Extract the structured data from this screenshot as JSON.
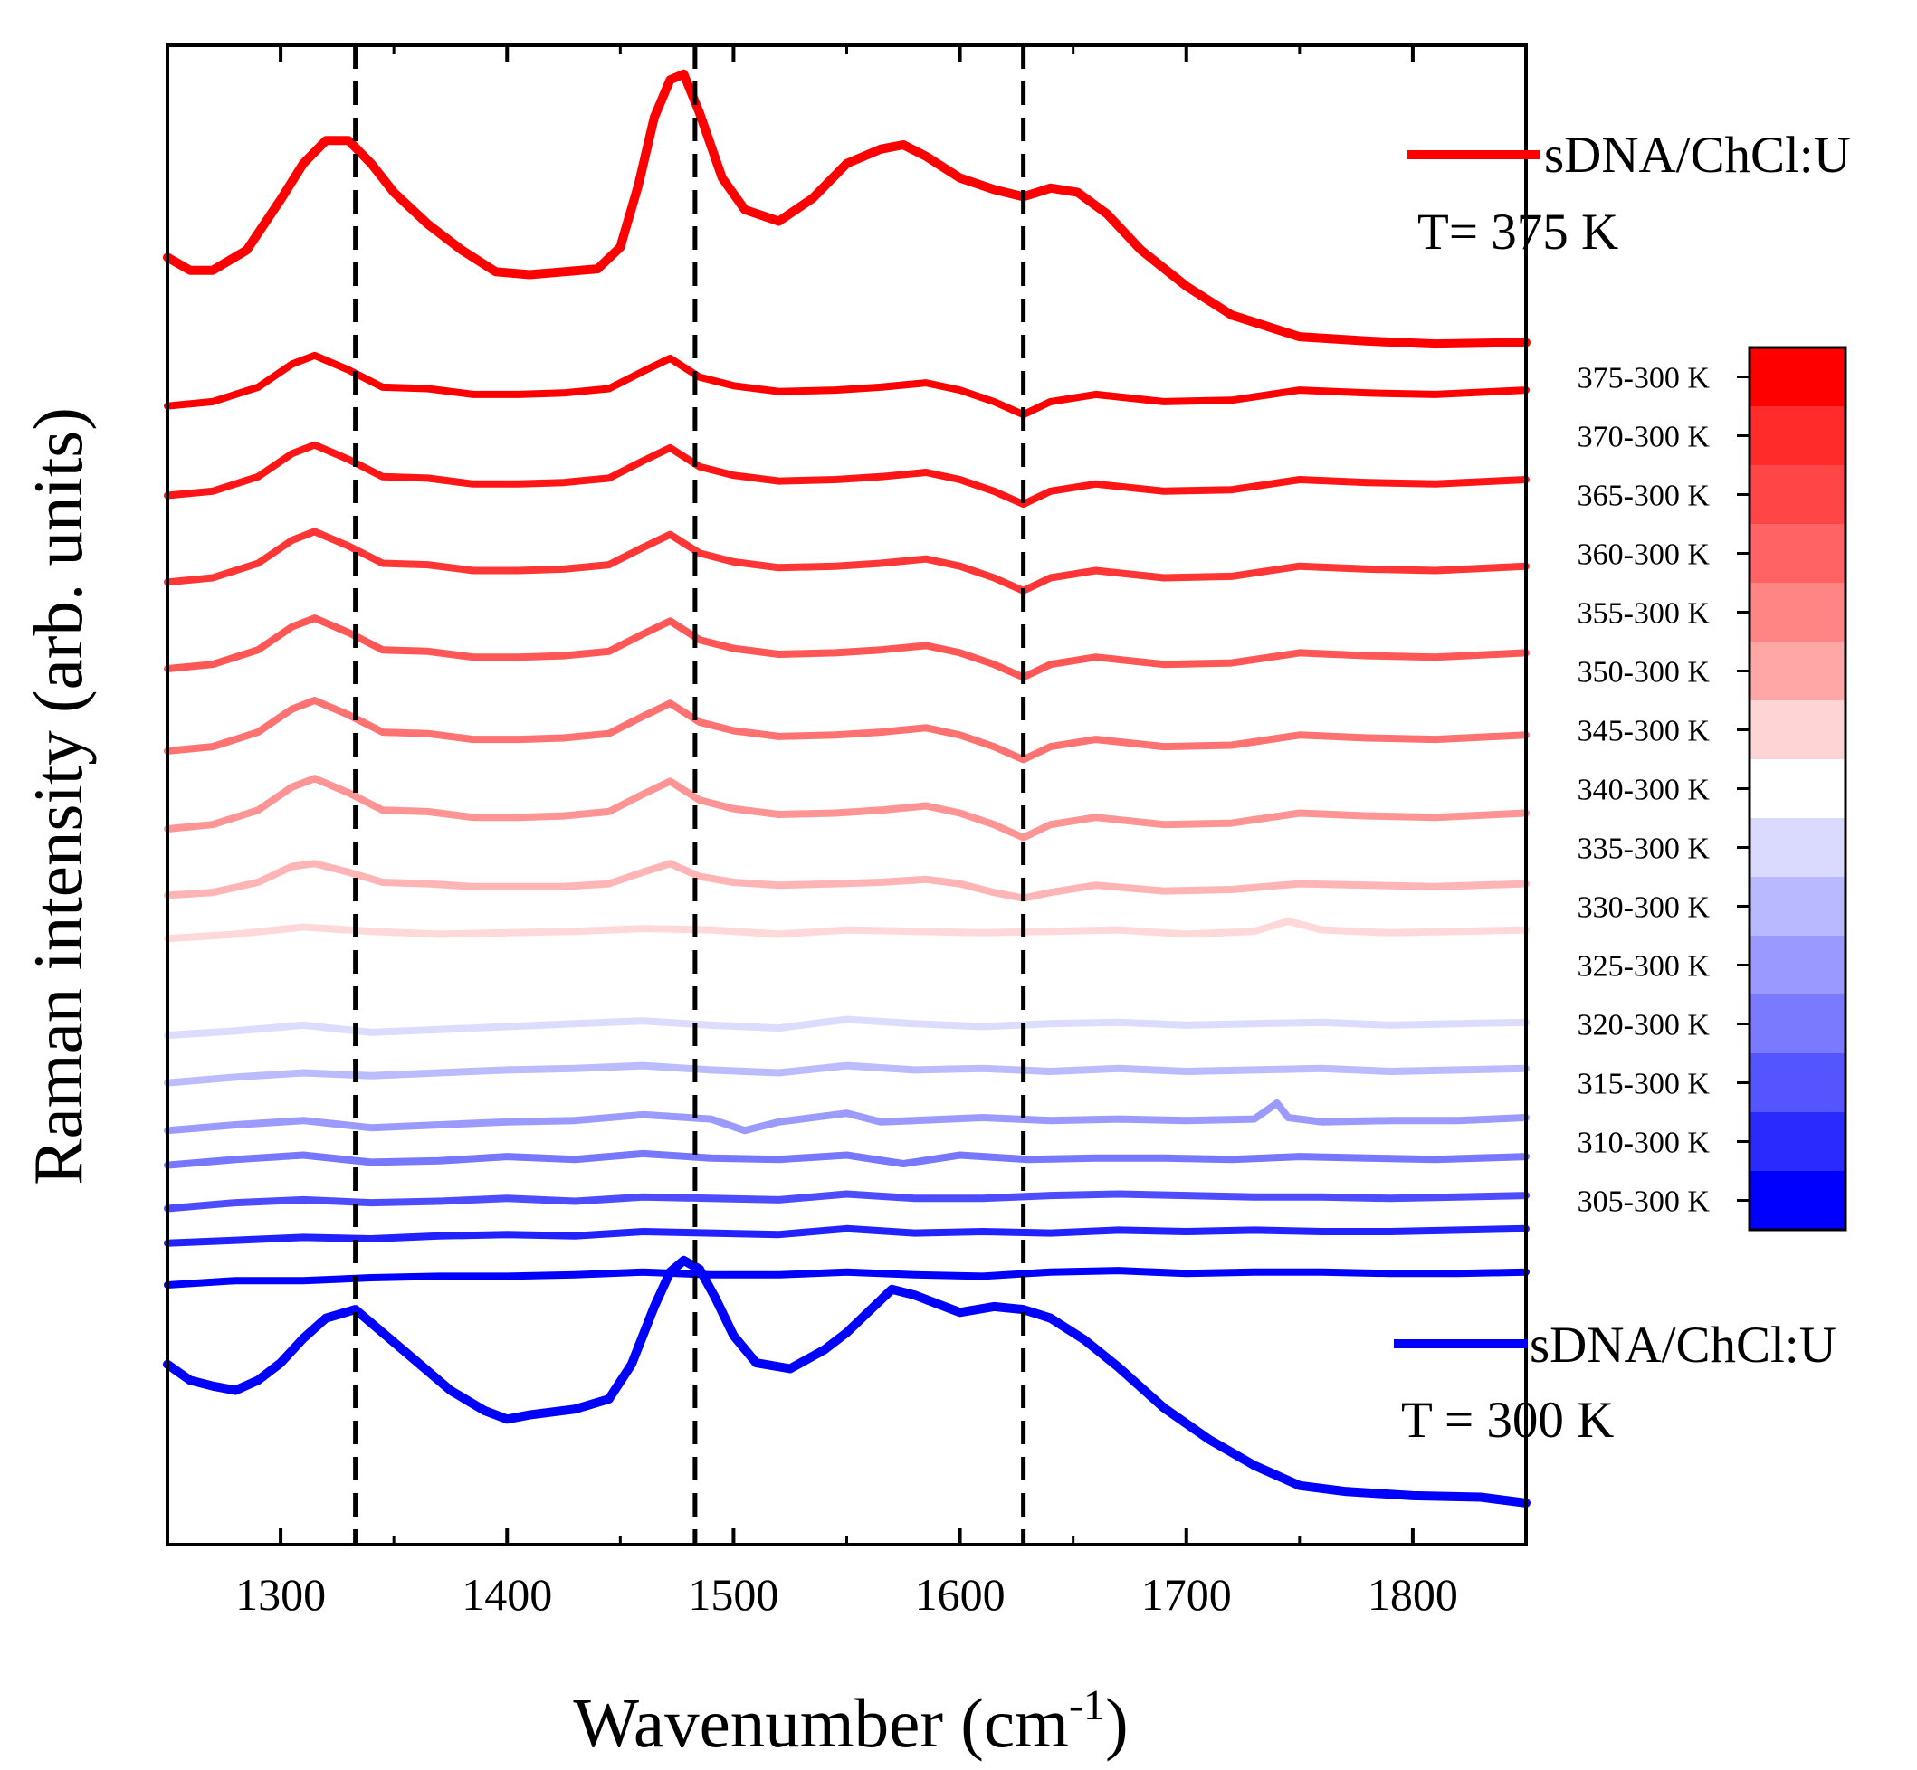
{
  "chart_data": {
    "type": "line",
    "title": "",
    "xlabel": "Wavenumber (cm",
    "xlabel_sup": "-1",
    "xlabel_end": ")",
    "ylabel": "Raman intensity (arb. units)",
    "xlim": [
      1250,
      1850
    ],
    "xticks": [
      1300,
      1400,
      1500,
      1600,
      1700,
      1800
    ],
    "ylim": [
      0,
      100
    ],
    "grid": false,
    "dashed_reference_lines": [
      1333,
      1483,
      1628
    ],
    "legend": [
      {
        "label": "sDNA/ChCl:U",
        "temperature": "T= 375 K",
        "color": "#ff0000"
      },
      {
        "label": "sDNA/ChCl:U",
        "temperature": "T = 300 K",
        "color": "#0000ff"
      }
    ],
    "colorbar": {
      "labels": [
        "375-300 K",
        "370-300 K",
        "365-300 K",
        "360-300 K",
        "355-300 K",
        "350-300 K",
        "345-300 K",
        "340-300 K",
        "335-300 K",
        "330-300 K",
        "325-300 K",
        "320-300 K",
        "315-300 K",
        "310-300 K",
        "305-300 K"
      ],
      "colors": [
        "#ff0000",
        "#ff2a2a",
        "#ff4545",
        "#ff6363",
        "#ff8484",
        "#ffa6a6",
        "#ffd4d4",
        "#ffffff",
        "#dadaff",
        "#b9b9ff",
        "#9999ff",
        "#7a7aff",
        "#5555ff",
        "#2a2aff",
        "#0000ff"
      ]
    },
    "series": [
      {
        "name": "sDNA/ChCl:U T= 375 K",
        "color": "#ff0000",
        "x": [
          1250,
          1260,
          1270,
          1285,
          1300,
          1310,
          1320,
          1330,
          1340,
          1350,
          1365,
          1380,
          1395,
          1410,
          1425,
          1440,
          1450,
          1458,
          1465,
          1472,
          1478,
          1485,
          1495,
          1505,
          1520,
          1535,
          1550,
          1565,
          1575,
          1585,
          1600,
          1615,
          1628,
          1640,
          1652,
          1665,
          1680,
          1700,
          1720,
          1750,
          1780,
          1810,
          1850
        ],
        "y": [
          87.5,
          86.6,
          86.6,
          88.0,
          91.5,
          94.0,
          95.6,
          95.6,
          94.0,
          92.0,
          89.8,
          88.0,
          86.5,
          86.3,
          86.5,
          86.7,
          88.2,
          92.5,
          97.2,
          99.8,
          100.2,
          97.5,
          93.0,
          90.8,
          90.0,
          91.6,
          94.0,
          95.0,
          95.3,
          94.5,
          93.0,
          92.2,
          91.7,
          92.3,
          92.0,
          90.5,
          88.0,
          85.5,
          83.5,
          82.0,
          81.7,
          81.5,
          81.6
        ]
      },
      {
        "name": "375-300 K",
        "color": "#ff0000",
        "x": [
          1250,
          1270,
          1290,
          1305,
          1315,
          1330,
          1345,
          1365,
          1385,
          1405,
          1425,
          1445,
          1460,
          1472,
          1485,
          1500,
          1520,
          1545,
          1565,
          1585,
          1600,
          1615,
          1628,
          1640,
          1660,
          1690,
          1720,
          1750,
          1780,
          1810,
          1850
        ],
        "y": [
          77.2,
          77.5,
          78.5,
          80.1,
          80.7,
          79.7,
          78.5,
          78.4,
          78.0,
          78.0,
          78.1,
          78.4,
          79.6,
          80.5,
          79.2,
          78.6,
          78.2,
          78.3,
          78.5,
          78.8,
          78.3,
          77.5,
          76.6,
          77.5,
          78.0,
          77.5,
          77.6,
          78.3,
          78.1,
          78.0,
          78.3
        ]
      },
      {
        "name": "370-300 K",
        "color": "#ff1515",
        "x": [
          1250,
          1270,
          1290,
          1305,
          1315,
          1330,
          1345,
          1365,
          1385,
          1405,
          1425,
          1445,
          1460,
          1472,
          1485,
          1500,
          1520,
          1545,
          1565,
          1585,
          1600,
          1615,
          1628,
          1640,
          1660,
          1690,
          1720,
          1750,
          1780,
          1810,
          1850
        ],
        "y": [
          71.0,
          71.3,
          72.3,
          73.9,
          74.5,
          73.5,
          72.3,
          72.2,
          71.8,
          71.8,
          71.9,
          72.2,
          73.4,
          74.3,
          73.0,
          72.4,
          72.0,
          72.1,
          72.3,
          72.6,
          72.1,
          71.3,
          70.4,
          71.3,
          71.8,
          71.3,
          71.4,
          72.1,
          71.9,
          71.8,
          72.1
        ]
      },
      {
        "name": "365-300 K",
        "color": "#ff3636",
        "x": [
          1250,
          1270,
          1290,
          1305,
          1315,
          1330,
          1345,
          1365,
          1385,
          1405,
          1425,
          1445,
          1460,
          1472,
          1485,
          1500,
          1520,
          1545,
          1565,
          1585,
          1600,
          1615,
          1628,
          1640,
          1660,
          1690,
          1720,
          1750,
          1780,
          1810,
          1850
        ],
        "y": [
          65.0,
          65.3,
          66.3,
          67.9,
          68.5,
          67.5,
          66.3,
          66.2,
          65.8,
          65.8,
          65.9,
          66.2,
          67.4,
          68.3,
          67.0,
          66.4,
          66.0,
          66.1,
          66.3,
          66.6,
          66.1,
          65.3,
          64.4,
          65.3,
          65.8,
          65.3,
          65.4,
          66.1,
          65.9,
          65.8,
          66.1
        ]
      },
      {
        "name": "360-300 K",
        "color": "#ff5656",
        "x": [
          1250,
          1270,
          1290,
          1305,
          1315,
          1330,
          1345,
          1365,
          1385,
          1405,
          1425,
          1445,
          1460,
          1472,
          1485,
          1500,
          1520,
          1545,
          1565,
          1585,
          1600,
          1615,
          1628,
          1640,
          1660,
          1690,
          1720,
          1750,
          1780,
          1810,
          1850
        ],
        "y": [
          59.0,
          59.3,
          60.3,
          61.9,
          62.5,
          61.5,
          60.3,
          60.2,
          59.8,
          59.8,
          59.9,
          60.2,
          61.4,
          62.3,
          61.0,
          60.4,
          60.0,
          60.1,
          60.3,
          60.6,
          60.1,
          59.3,
          58.4,
          59.3,
          59.8,
          59.3,
          59.4,
          60.1,
          59.9,
          59.8,
          60.1
        ]
      },
      {
        "name": "355-300 K",
        "color": "#ff7272",
        "x": [
          1250,
          1270,
          1290,
          1305,
          1315,
          1330,
          1345,
          1365,
          1385,
          1405,
          1425,
          1445,
          1460,
          1472,
          1485,
          1500,
          1520,
          1545,
          1565,
          1585,
          1600,
          1615,
          1628,
          1640,
          1660,
          1690,
          1720,
          1750,
          1780,
          1810,
          1850
        ],
        "y": [
          53.3,
          53.6,
          54.6,
          56.2,
          56.8,
          55.8,
          54.6,
          54.5,
          54.1,
          54.1,
          54.2,
          54.5,
          55.7,
          56.6,
          55.3,
          54.7,
          54.3,
          54.4,
          54.6,
          54.9,
          54.4,
          53.6,
          52.7,
          53.6,
          54.1,
          53.6,
          53.7,
          54.4,
          54.2,
          54.1,
          54.4
        ]
      },
      {
        "name": "350-300 K",
        "color": "#ff9494",
        "x": [
          1250,
          1270,
          1290,
          1305,
          1315,
          1330,
          1345,
          1365,
          1385,
          1405,
          1425,
          1445,
          1460,
          1472,
          1485,
          1500,
          1520,
          1545,
          1565,
          1585,
          1600,
          1615,
          1628,
          1640,
          1660,
          1690,
          1720,
          1750,
          1780,
          1810,
          1850
        ],
        "y": [
          47.9,
          48.2,
          49.2,
          50.8,
          51.4,
          50.4,
          49.2,
          49.1,
          48.7,
          48.7,
          48.8,
          49.1,
          50.3,
          51.2,
          49.9,
          49.3,
          48.9,
          49.0,
          49.2,
          49.5,
          49.0,
          48.2,
          47.3,
          48.2,
          48.7,
          48.2,
          48.3,
          49.0,
          48.8,
          48.7,
          49.0
        ]
      },
      {
        "name": "345-300 K",
        "color": "#ffb5b5",
        "x": [
          1250,
          1270,
          1290,
          1305,
          1315,
          1330,
          1345,
          1365,
          1385,
          1405,
          1425,
          1445,
          1460,
          1472,
          1485,
          1500,
          1520,
          1545,
          1565,
          1585,
          1600,
          1615,
          1628,
          1640,
          1660,
          1690,
          1720,
          1750,
          1780,
          1810,
          1850
        ],
        "y": [
          43.3,
          43.5,
          44.2,
          45.3,
          45.5,
          44.9,
          44.2,
          44.1,
          43.9,
          43.9,
          43.9,
          44.1,
          44.9,
          45.5,
          44.6,
          44.2,
          44.0,
          44.1,
          44.2,
          44.4,
          44.1,
          43.5,
          43.1,
          43.5,
          44.0,
          43.6,
          43.7,
          44.1,
          44.0,
          43.9,
          44.1
        ]
      },
      {
        "name": "340-300 K",
        "color": "#ffd9d9",
        "x": [
          1250,
          1280,
          1310,
          1340,
          1370,
          1400,
          1430,
          1460,
          1490,
          1520,
          1550,
          1580,
          1610,
          1640,
          1670,
          1700,
          1730,
          1745,
          1760,
          1790,
          1820,
          1850
        ],
        "y": [
          40.3,
          40.6,
          41.1,
          40.8,
          40.6,
          40.7,
          40.8,
          41.0,
          40.9,
          40.6,
          40.9,
          40.8,
          40.7,
          40.8,
          40.9,
          40.6,
          40.8,
          41.5,
          40.9,
          40.7,
          40.8,
          40.9
        ]
      },
      {
        "name": "335-300 K",
        "color": "#dcdcff",
        "x": [
          1250,
          1280,
          1310,
          1340,
          1370,
          1400,
          1430,
          1460,
          1490,
          1520,
          1550,
          1580,
          1610,
          1640,
          1670,
          1700,
          1730,
          1760,
          1790,
          1820,
          1850
        ],
        "y": [
          33.6,
          33.9,
          34.3,
          33.8,
          34.0,
          34.2,
          34.4,
          34.6,
          34.3,
          34.1,
          34.7,
          34.4,
          34.2,
          34.4,
          34.5,
          34.3,
          34.4,
          34.5,
          34.3,
          34.4,
          34.5
        ]
      },
      {
        "name": "330-300 K",
        "color": "#bbbbff",
        "x": [
          1250,
          1280,
          1310,
          1340,
          1370,
          1400,
          1430,
          1460,
          1490,
          1520,
          1550,
          1580,
          1610,
          1640,
          1670,
          1700,
          1730,
          1760,
          1790,
          1820,
          1850
        ],
        "y": [
          30.3,
          30.7,
          31.0,
          30.8,
          31.0,
          31.2,
          31.3,
          31.5,
          31.2,
          31.0,
          31.5,
          31.2,
          31.3,
          31.1,
          31.3,
          31.1,
          31.2,
          31.3,
          31.1,
          31.2,
          31.3
        ]
      },
      {
        "name": "325-300 K",
        "color": "#9b9bff",
        "x": [
          1250,
          1280,
          1310,
          1340,
          1370,
          1400,
          1430,
          1460,
          1490,
          1505,
          1520,
          1550,
          1565,
          1580,
          1610,
          1640,
          1670,
          1700,
          1730,
          1740,
          1745,
          1760,
          1790,
          1820,
          1850
        ],
        "y": [
          27.0,
          27.4,
          27.7,
          27.2,
          27.4,
          27.6,
          27.7,
          28.1,
          27.8,
          27.0,
          27.6,
          28.2,
          27.6,
          27.7,
          27.9,
          27.7,
          27.8,
          27.7,
          27.8,
          28.9,
          27.9,
          27.6,
          27.7,
          27.7,
          27.9
        ]
      },
      {
        "name": "320-300 K",
        "color": "#7777ff",
        "x": [
          1250,
          1280,
          1310,
          1340,
          1370,
          1400,
          1430,
          1460,
          1490,
          1520,
          1550,
          1575,
          1600,
          1630,
          1660,
          1690,
          1720,
          1750,
          1780,
          1810,
          1850
        ],
        "y": [
          24.6,
          25.0,
          25.3,
          24.8,
          24.9,
          25.2,
          25.0,
          25.4,
          25.1,
          25.0,
          25.3,
          24.7,
          25.3,
          25.0,
          25.1,
          25.1,
          25.0,
          25.2,
          25.1,
          25.0,
          25.2
        ]
      },
      {
        "name": "315-300 K",
        "color": "#4d4dff",
        "x": [
          1250,
          1280,
          1310,
          1340,
          1370,
          1400,
          1430,
          1460,
          1490,
          1520,
          1550,
          1580,
          1610,
          1640,
          1670,
          1700,
          1730,
          1760,
          1790,
          1820,
          1850
        ],
        "y": [
          21.6,
          22.0,
          22.2,
          22.0,
          22.1,
          22.3,
          22.1,
          22.4,
          22.3,
          22.2,
          22.6,
          22.3,
          22.3,
          22.5,
          22.6,
          22.5,
          22.4,
          22.4,
          22.3,
          22.4,
          22.5
        ]
      },
      {
        "name": "310-300 K",
        "color": "#2222ff",
        "x": [
          1250,
          1280,
          1310,
          1340,
          1370,
          1400,
          1430,
          1460,
          1490,
          1520,
          1550,
          1580,
          1610,
          1640,
          1670,
          1700,
          1730,
          1760,
          1790,
          1820,
          1850
        ],
        "y": [
          19.2,
          19.4,
          19.6,
          19.5,
          19.7,
          19.8,
          19.7,
          20.0,
          19.9,
          19.8,
          20.2,
          19.9,
          20.0,
          19.9,
          20.1,
          20.0,
          20.1,
          20.0,
          20.0,
          20.1,
          20.2
        ]
      },
      {
        "name": "305-300 K",
        "color": "#0000ff",
        "x": [
          1250,
          1280,
          1310,
          1340,
          1370,
          1400,
          1430,
          1460,
          1490,
          1520,
          1550,
          1580,
          1610,
          1640,
          1670,
          1700,
          1730,
          1760,
          1790,
          1820,
          1850
        ],
        "y": [
          16.3,
          16.6,
          16.6,
          16.8,
          16.9,
          16.9,
          17.0,
          17.2,
          17.0,
          17.0,
          17.2,
          17.0,
          16.9,
          17.2,
          17.3,
          17.1,
          17.2,
          17.2,
          17.1,
          17.1,
          17.2
        ]
      },
      {
        "name": "sDNA/ChCl:U T = 300 K",
        "color": "#0000ff",
        "x": [
          1250,
          1260,
          1270,
          1280,
          1290,
          1300,
          1310,
          1320,
          1333,
          1345,
          1360,
          1375,
          1390,
          1400,
          1410,
          1430,
          1445,
          1455,
          1465,
          1472,
          1478,
          1485,
          1492,
          1500,
          1510,
          1525,
          1540,
          1550,
          1560,
          1570,
          1580,
          1590,
          1600,
          1615,
          1628,
          1640,
          1655,
          1670,
          1690,
          1710,
          1730,
          1750,
          1770,
          1800,
          1830,
          1850
        ],
        "y": [
          10.8,
          9.7,
          9.3,
          9.0,
          9.7,
          10.9,
          12.6,
          14.0,
          14.6,
          13.0,
          11.0,
          9.0,
          7.6,
          7.0,
          7.3,
          7.7,
          8.4,
          10.8,
          14.8,
          17.2,
          18.0,
          17.4,
          15.4,
          12.8,
          10.9,
          10.5,
          11.8,
          13.0,
          14.5,
          16.0,
          15.6,
          15.0,
          14.4,
          14.8,
          14.6,
          14.0,
          12.5,
          10.6,
          7.8,
          5.6,
          3.8,
          2.4,
          2.0,
          1.7,
          1.6,
          1.2
        ]
      }
    ]
  }
}
